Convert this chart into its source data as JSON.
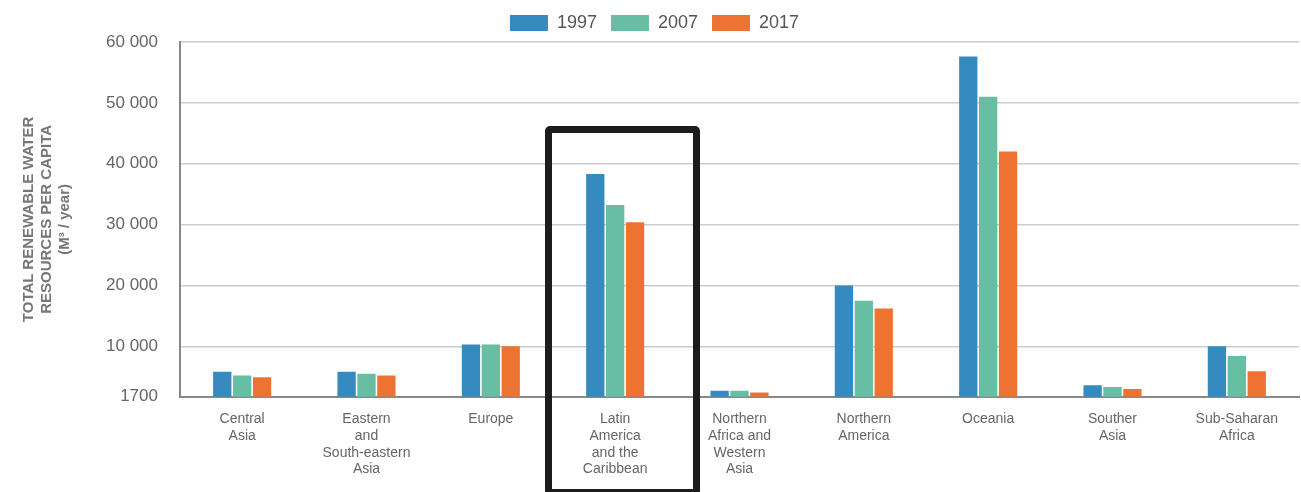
{
  "chart_data": {
    "type": "bar",
    "ylabel": "TOTAL RENEWABLE WATER\nRESOURCES PER CAPITA\n(M³ / year)",
    "categories": [
      "Central Asia",
      "Eastern and South-eastern Asia",
      "Europe",
      "Latin America and the Caribbean",
      "Northern Africa and Western Asia",
      "Northern America",
      "Oceania",
      "Souther Asia",
      "Sub-Saharan Africa"
    ],
    "series": [
      {
        "name": "1997",
        "color": "#358bbf",
        "values": [
          5800,
          5800,
          10300,
          38300,
          2700,
          20000,
          57600,
          3600,
          10000
        ]
      },
      {
        "name": "2007",
        "color": "#67bea2",
        "values": [
          5200,
          5500,
          10300,
          33200,
          2700,
          17500,
          51000,
          3300,
          8400
        ]
      },
      {
        "name": "2017",
        "color": "#ee7333",
        "values": [
          4900,
          5200,
          10000,
          30400,
          2400,
          16200,
          42000,
          3000,
          5900
        ]
      }
    ],
    "ylim": [
      1700,
      60000
    ],
    "yticks": [
      1700,
      {
        "value": 10000,
        "label": "10 000"
      },
      {
        "value": 20000,
        "label": "20 000"
      },
      {
        "value": 30000,
        "label": "30 000"
      },
      {
        "value": 40000,
        "label": "40 000"
      },
      {
        "value": 50000,
        "label": "50 000"
      },
      {
        "value": 60000,
        "label": "60 000"
      }
    ],
    "grid": "y",
    "legend": "top"
  }
}
